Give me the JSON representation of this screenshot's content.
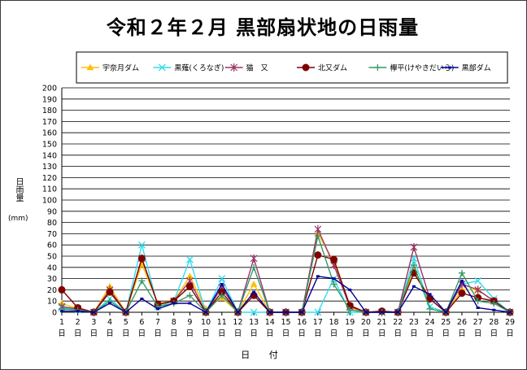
{
  "chart_data": {
    "type": "line",
    "title": "令和２年２月 黒部扇状地の日雨量",
    "ylabel_vertical": "日雨量",
    "ylabel_unit": "(mm)",
    "xlabel": "日 付",
    "ylim": [
      0,
      200
    ],
    "ytick_step": 10,
    "grid": true,
    "legend_position": "top",
    "x": [
      "1",
      "2",
      "3",
      "4",
      "5",
      "6",
      "7",
      "8",
      "9",
      "10",
      "11",
      "12",
      "13",
      "14",
      "15",
      "16",
      "17",
      "18",
      "19",
      "20",
      "21",
      "22",
      "23",
      "24",
      "25",
      "26",
      "27",
      "28",
      "29"
    ],
    "x_suffix": "日",
    "series": [
      {
        "name": "宇奈月ダム",
        "color": "#FFC000",
        "marker": "triangle",
        "values": [
          8,
          3,
          0,
          23,
          0,
          43,
          8,
          10,
          32,
          3,
          13,
          0,
          25,
          0,
          0,
          0,
          70,
          45,
          4,
          0,
          0,
          0,
          38,
          12,
          0,
          20,
          20,
          10,
          0
        ]
      },
      {
        "name": "黒薙(くろなぎ)",
        "color": "#33DDEE",
        "marker": "x",
        "values": [
          4,
          2,
          0,
          12,
          0,
          60,
          5,
          10,
          47,
          0,
          30,
          0,
          0,
          0,
          0,
          0,
          0,
          30,
          0,
          0,
          0,
          0,
          48,
          5,
          0,
          25,
          28,
          12,
          0
        ]
      },
      {
        "name": "猫　又",
        "color": "#993366",
        "marker": "star",
        "values": [
          5,
          3,
          0,
          20,
          0,
          48,
          7,
          10,
          28,
          0,
          22,
          0,
          48,
          0,
          0,
          0,
          74,
          42,
          5,
          0,
          0,
          0,
          58,
          12,
          0,
          25,
          20,
          10,
          0
        ]
      },
      {
        "name": "北又ダム",
        "color": "#800000",
        "marker": "circle",
        "values": [
          20,
          4,
          0,
          18,
          0,
          48,
          7,
          10,
          23,
          0,
          18,
          0,
          15,
          0,
          0,
          0,
          51,
          47,
          6,
          0,
          1,
          0,
          35,
          12,
          0,
          17,
          13,
          10,
          0
        ]
      },
      {
        "name": "欅平(けやきだいら)",
        "color": "#339966",
        "marker": "plus",
        "values": [
          3,
          2,
          0,
          10,
          0,
          28,
          5,
          8,
          15,
          0,
          15,
          0,
          40,
          0,
          0,
          0,
          68,
          25,
          2,
          0,
          0,
          0,
          42,
          3,
          0,
          35,
          10,
          8,
          0
        ]
      },
      {
        "name": "黒部ダム",
        "color": "#000099",
        "marker": "dash",
        "values": [
          1,
          1,
          0,
          8,
          0,
          12,
          3,
          8,
          8,
          0,
          25,
          0,
          18,
          0,
          0,
          0,
          32,
          30,
          20,
          0,
          0,
          0,
          23,
          16,
          0,
          28,
          4,
          2,
          0
        ]
      }
    ]
  }
}
